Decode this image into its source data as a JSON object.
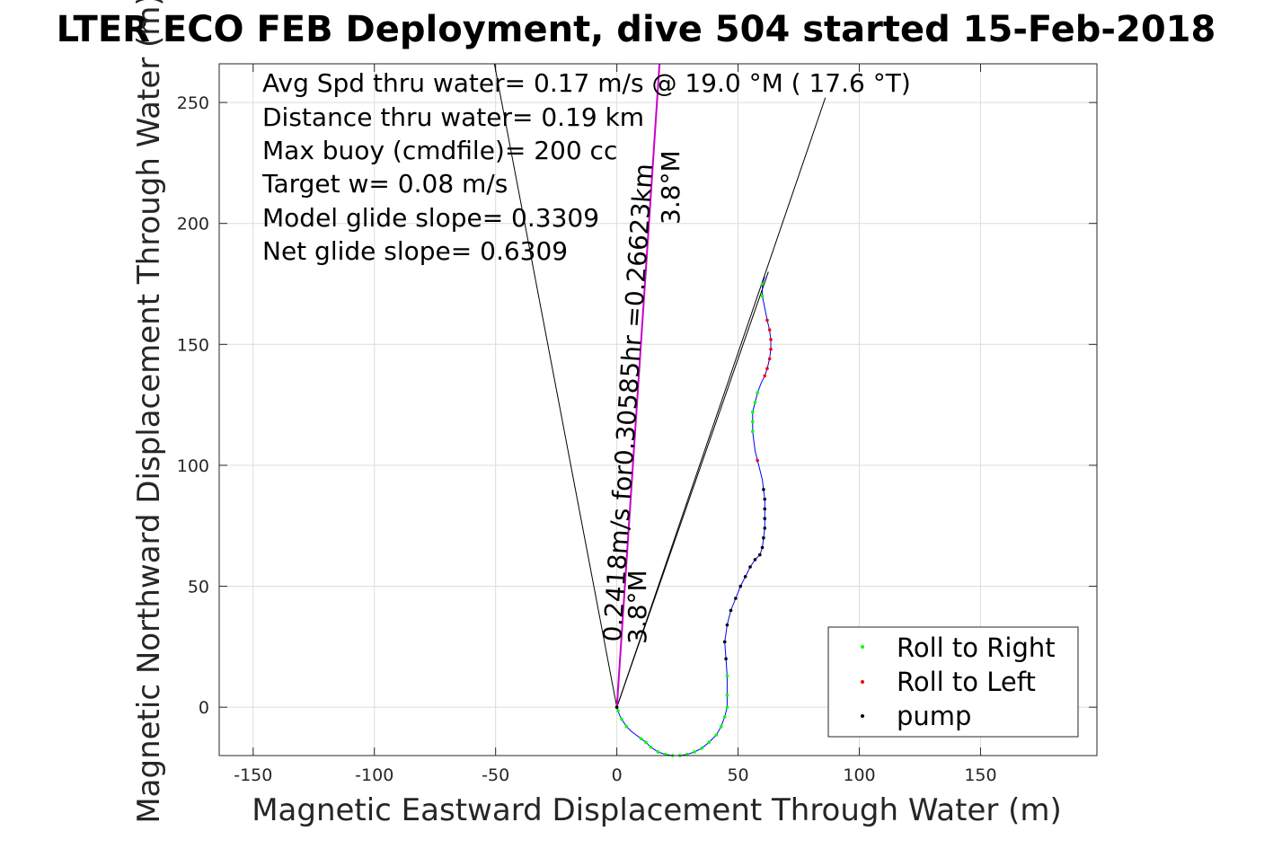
{
  "chart_data": {
    "type": "scatter",
    "title": "LTER ECO FEB Deployment, dive 504 started 15-Feb-2018",
    "xlabel": "Magnetic Eastward Displacement Through Water (m)",
    "ylabel": "Magnetic Northward Displacement Through Water (m)",
    "xlim": [
      -164,
      198
    ],
    "ylim": [
      -20,
      266
    ],
    "xticks": [
      -150,
      -100,
      -50,
      0,
      50,
      100,
      150
    ],
    "yticks": [
      0,
      50,
      100,
      150,
      200,
      250
    ],
    "grid": true,
    "legend_position": "bottom-right",
    "annotations": [
      "Avg Spd thru water=  0.17 m/s @  19.0 °M ( 17.6 °T)",
      "Distance thru water=  0.19 km",
      "Max buoy (cmdfile)= 200 cc",
      "Target w= 0.08 m/s",
      "Model glide slope= 0.3309",
      "Net glide slope= 0.6309"
    ],
    "rotated_labels": {
      "speed": "0.2418m/s for0.30585hr =0.26623km",
      "heading_upper": "3.8°M",
      "heading_lower": "3.8°M"
    },
    "legend": [
      "Roll to Right",
      "Roll to Left",
      "pump"
    ],
    "colors": {
      "roll_right": "#00ff00",
      "roll_left": "#ff0000",
      "pump": "#000000",
      "track": "#0000ff",
      "current": "#cc00cc",
      "cone": "#000000"
    },
    "track": [
      [
        0,
        0
      ],
      [
        0.5,
        -1.5
      ],
      [
        1,
        -3
      ],
      [
        2,
        -5
      ],
      [
        4,
        -8
      ],
      [
        6,
        -10
      ],
      [
        8,
        -11.5
      ],
      [
        10,
        -13
      ],
      [
        12,
        -14.5
      ],
      [
        14,
        -16.5
      ],
      [
        17,
        -18.5
      ],
      [
        20,
        -19.5
      ],
      [
        23,
        -20
      ],
      [
        26,
        -20
      ],
      [
        29,
        -19.5
      ],
      [
        32,
        -18.5
      ],
      [
        35,
        -17
      ],
      [
        38,
        -14.5
      ],
      [
        41,
        -11.5
      ],
      [
        43,
        -8
      ],
      [
        44.5,
        -4
      ],
      [
        45.5,
        0
      ],
      [
        45.5,
        5
      ],
      [
        45.5,
        13
      ],
      [
        45,
        20
      ],
      [
        44.5,
        27
      ],
      [
        45.5,
        34
      ],
      [
        47,
        40
      ],
      [
        49,
        45
      ],
      [
        51,
        50
      ],
      [
        53,
        54
      ],
      [
        55,
        58
      ],
      [
        57,
        61
      ],
      [
        59,
        63
      ],
      [
        60,
        66
      ],
      [
        60.5,
        70
      ],
      [
        61,
        74
      ],
      [
        61,
        78
      ],
      [
        61,
        82
      ],
      [
        61,
        86
      ],
      [
        60.5,
        90
      ],
      [
        60,
        94
      ],
      [
        59,
        98
      ],
      [
        58,
        102
      ],
      [
        57,
        106
      ],
      [
        56.5,
        110
      ],
      [
        56,
        114
      ],
      [
        56,
        118
      ],
      [
        56,
        122
      ],
      [
        57,
        126
      ],
      [
        58,
        130
      ],
      [
        59.5,
        134
      ],
      [
        61,
        137
      ],
      [
        62,
        140
      ],
      [
        63,
        144
      ],
      [
        63.5,
        148
      ],
      [
        63.5,
        152
      ],
      [
        63,
        156
      ],
      [
        62,
        160
      ],
      [
        61,
        165
      ],
      [
        60,
        170
      ],
      [
        60,
        175
      ],
      [
        61,
        178
      ]
    ],
    "series": [
      {
        "name": "Roll to Right",
        "points": [
          [
            0.5,
            -1.5
          ],
          [
            2,
            -5
          ],
          [
            4,
            -8
          ],
          [
            10,
            -13
          ],
          [
            12,
            -14.5
          ],
          [
            14,
            -16.5
          ],
          [
            17,
            -18.5
          ],
          [
            20,
            -19.5
          ],
          [
            23,
            -20
          ],
          [
            26,
            -20
          ],
          [
            29,
            -19.5
          ],
          [
            32,
            -18.5
          ],
          [
            35,
            -17
          ],
          [
            38,
            -14.5
          ],
          [
            41,
            -11.5
          ],
          [
            43,
            -8
          ],
          [
            44.5,
            -4
          ],
          [
            45.5,
            0
          ],
          [
            45.5,
            5
          ],
          [
            45.5,
            13
          ],
          [
            56,
            114
          ],
          [
            56,
            118
          ],
          [
            56,
            122
          ],
          [
            57,
            126
          ],
          [
            58,
            130
          ],
          [
            60,
            170
          ],
          [
            60,
            175
          ]
        ]
      },
      {
        "name": "Roll to Left",
        "points": [
          [
            0,
            0
          ],
          [
            61,
            137
          ],
          [
            62,
            140
          ],
          [
            63,
            144
          ],
          [
            63.5,
            148
          ],
          [
            63.5,
            152
          ],
          [
            63,
            156
          ],
          [
            62,
            160
          ],
          [
            58,
            102
          ]
        ]
      },
      {
        "name": "pump",
        "points": [
          [
            0,
            0
          ],
          [
            45,
            20
          ],
          [
            44.5,
            27
          ],
          [
            45.5,
            34
          ],
          [
            47,
            40
          ],
          [
            49,
            45
          ],
          [
            51,
            50
          ],
          [
            53,
            54
          ],
          [
            55,
            58
          ],
          [
            57,
            61
          ],
          [
            59,
            63
          ],
          [
            60,
            66
          ],
          [
            60.5,
            70
          ],
          [
            61,
            74
          ],
          [
            61,
            78
          ],
          [
            61,
            82
          ],
          [
            61,
            86
          ],
          [
            60.5,
            90
          ]
        ]
      }
    ],
    "lines": {
      "current": [
        [
          0,
          0
        ],
        [
          17.6,
          266
        ]
      ],
      "cone_left": [
        [
          0,
          0
        ],
        [
          -50.5,
          266
        ]
      ],
      "cone_right": [
        [
          0,
          0
        ],
        [
          86,
          252
        ]
      ],
      "wind_right": [
        [
          0,
          0
        ],
        [
          62.5,
          180
        ]
      ]
    }
  }
}
